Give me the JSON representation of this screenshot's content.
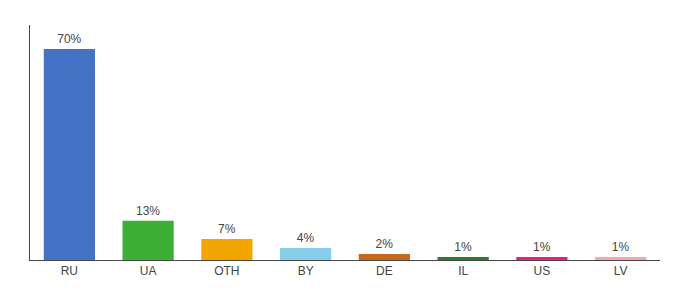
{
  "chart_data": {
    "type": "bar",
    "categories": [
      "RU",
      "UA",
      "OTH",
      "BY",
      "DE",
      "IL",
      "US",
      "LV"
    ],
    "values": [
      70,
      13,
      7,
      4,
      2,
      1,
      1,
      1
    ],
    "value_labels": [
      "70%",
      "13%",
      "7%",
      "4%",
      "2%",
      "1%",
      "1%",
      "1%"
    ],
    "colors": [
      "#4472c4",
      "#3cb034",
      "#f0a500",
      "#87ceeb",
      "#c46a1a",
      "#2d7a2d",
      "#e91e8c",
      "#f4a8b0"
    ],
    "ylim": [
      0,
      78
    ],
    "data_labels": true,
    "tick_labels": "x",
    "grid": false
  }
}
